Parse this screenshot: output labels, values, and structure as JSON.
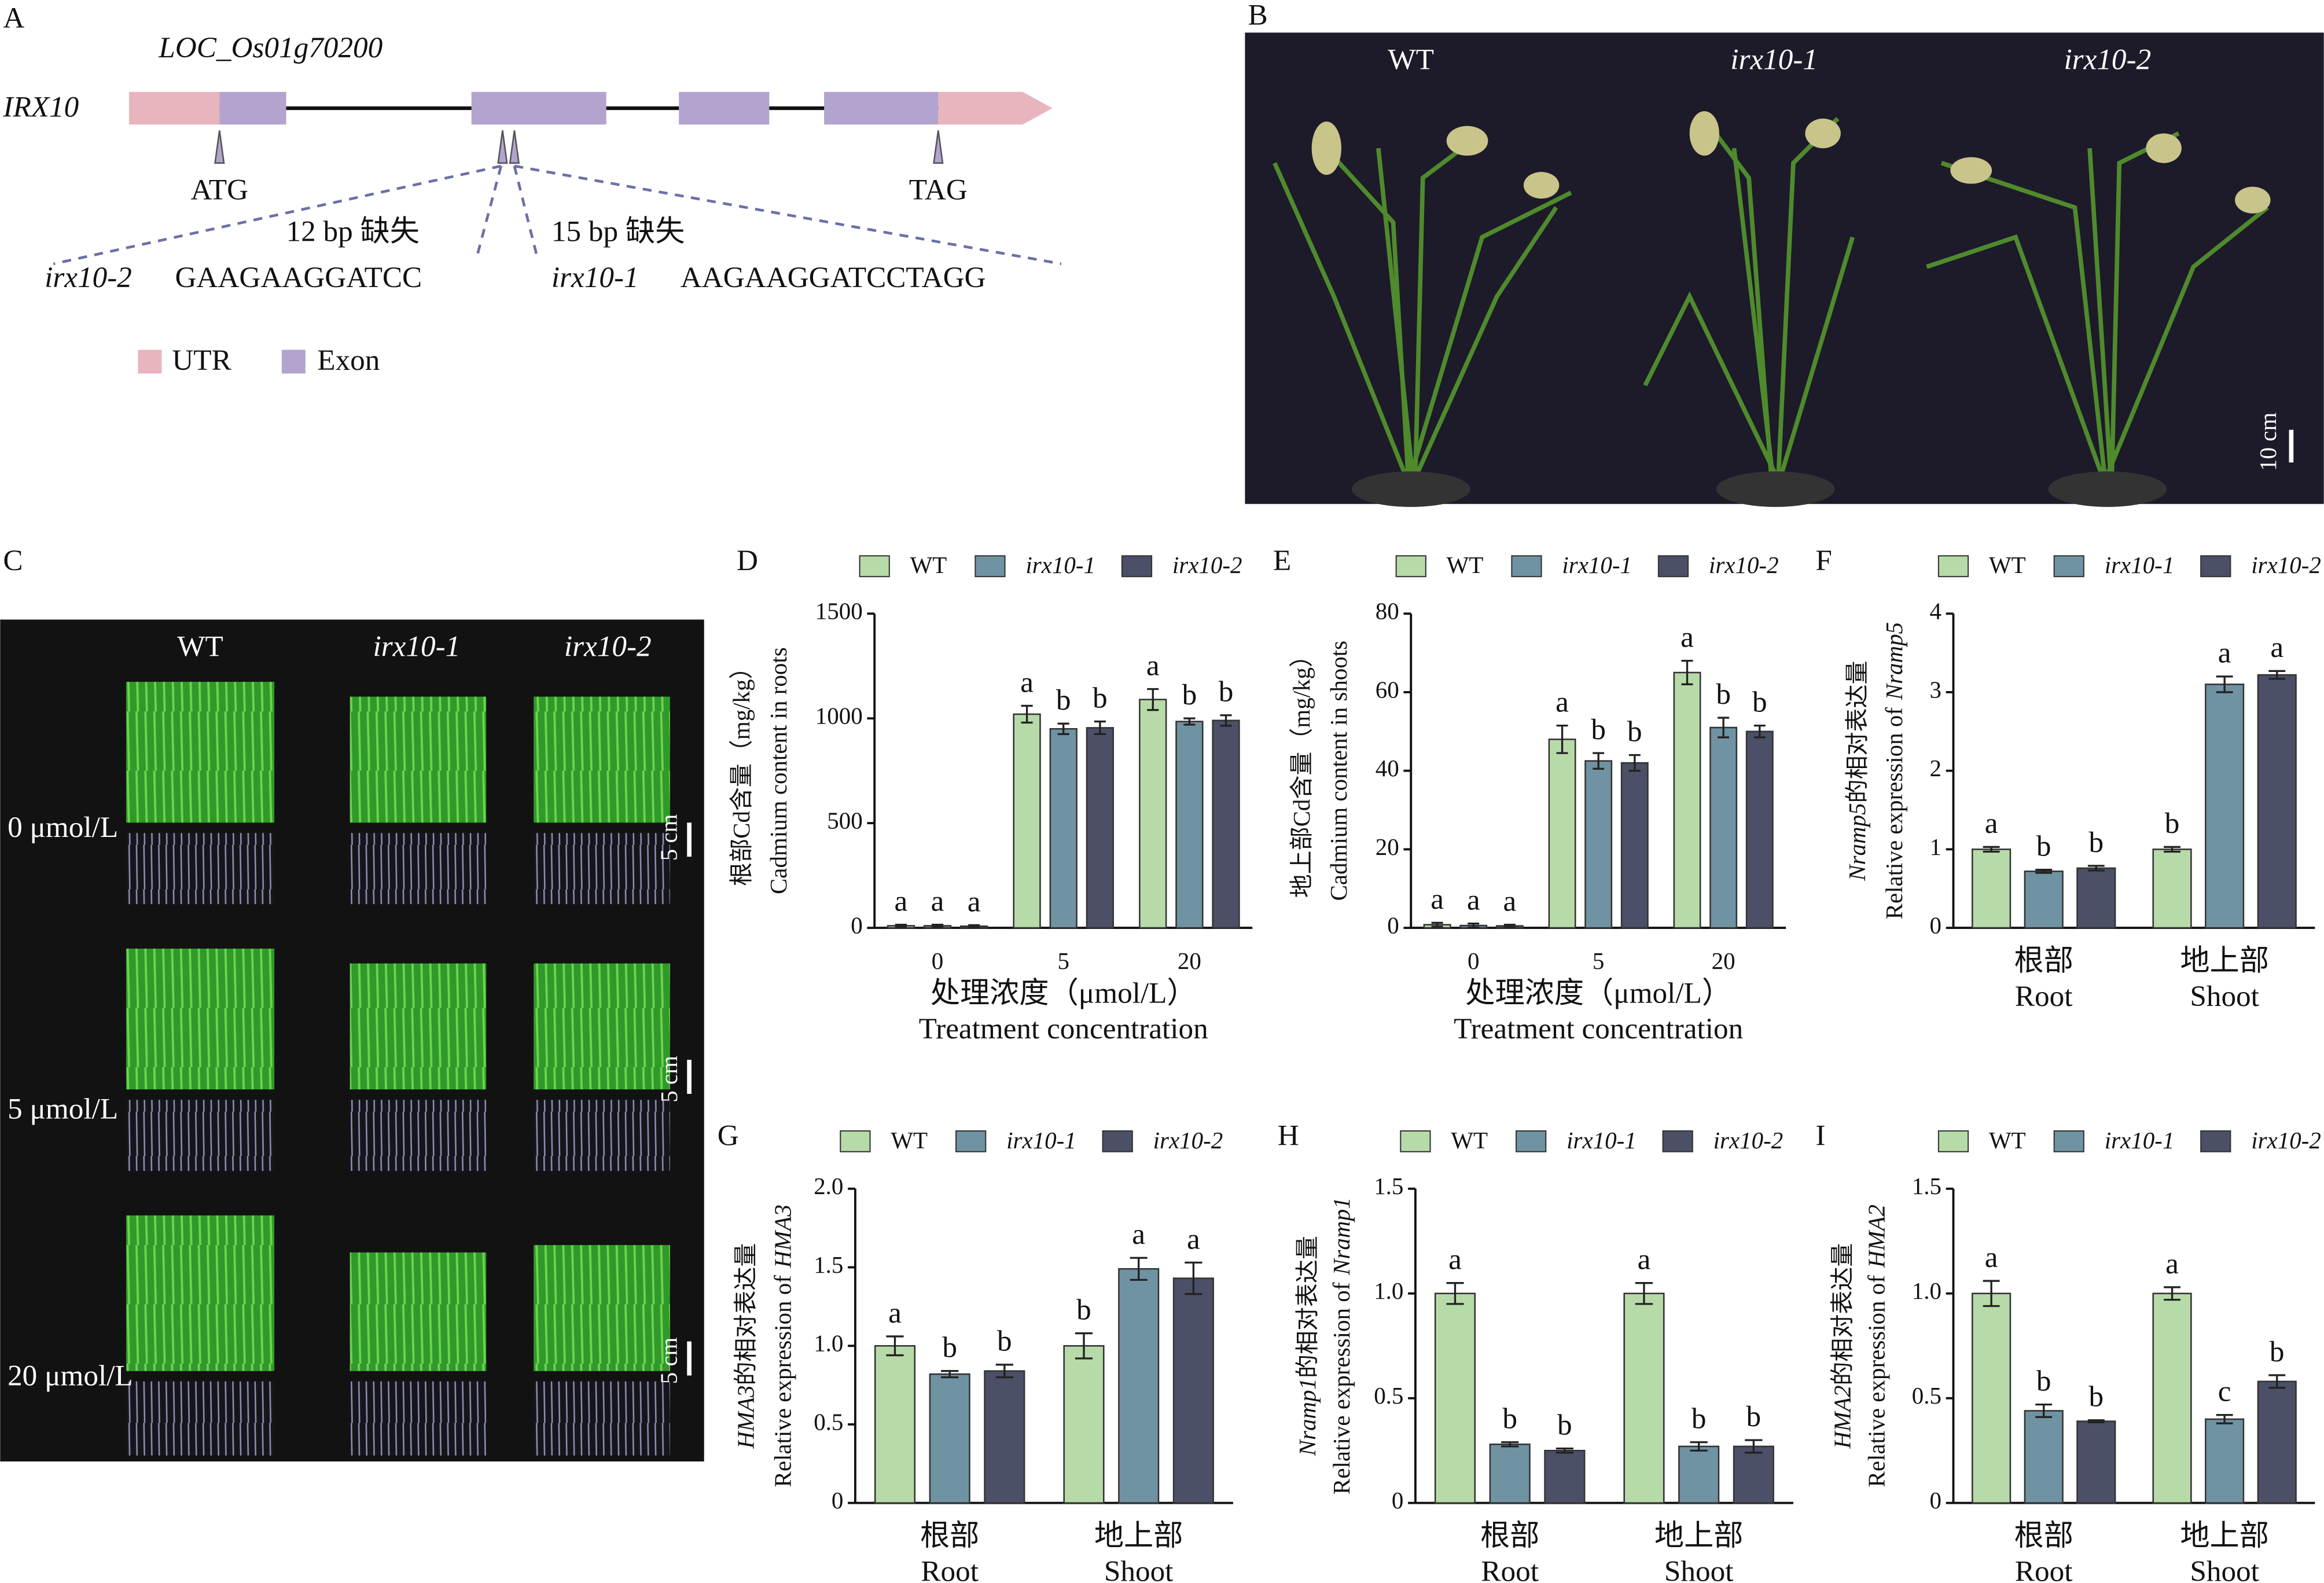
{
  "panel_a": {
    "label": "A",
    "locus": "LOC_Os01g70200",
    "gene": "IRX10",
    "start_codon": "ATG",
    "stop_codon": "TAG",
    "deletions": [
      {
        "size": "12 bp 缺失",
        "allele": "irx10-2",
        "sequence": "GAAGAAGGATCC"
      },
      {
        "size": "15 bp 缺失",
        "allele": "irx10-1",
        "sequence": "AAGAAGGATCCTAGG"
      }
    ],
    "legend": [
      "UTR",
      "Exon"
    ]
  },
  "panel_b": {
    "label": "B",
    "genotypes": [
      "WT",
      "irx10-1",
      "irx10-2"
    ],
    "scale_bar": "10 cm"
  },
  "panel_c": {
    "label": "C",
    "genotypes": [
      "WT",
      "irx10-1",
      "irx10-2"
    ],
    "treatments": [
      "0 μmol/L",
      "5 μmol/L",
      "20 μmol/L"
    ],
    "scale_bars": [
      "5 cm",
      "5 cm",
      "5 cm"
    ]
  },
  "chart_data": [
    {
      "panel": "D",
      "type": "bar",
      "ylabel": [
        "根部Cd含量（mg/kg）",
        "Cadmium content in roots"
      ],
      "xlabel": [
        "处理浓度（μmol/L）",
        "Treatment concentration"
      ],
      "categories": [
        "0",
        "5",
        "20"
      ],
      "series": [
        {
          "name": "WT",
          "italic": false,
          "color": "#b7dba8",
          "values": [
            10,
            1020,
            1090
          ],
          "errors": [
            5,
            40,
            50
          ],
          "letters": [
            "a",
            "a",
            "a"
          ]
        },
        {
          "name": "irx10-1",
          "italic": true,
          "color": "#7093a3",
          "values": [
            10,
            950,
            985
          ],
          "errors": [
            5,
            25,
            15
          ],
          "letters": [
            "a",
            "b",
            "b"
          ]
        },
        {
          "name": "irx10-2",
          "italic": true,
          "color": "#4b5068",
          "values": [
            8,
            955,
            990
          ],
          "errors": [
            5,
            30,
            25
          ],
          "letters": [
            "a",
            "b",
            "b"
          ]
        }
      ],
      "ylim": [
        0,
        1500
      ],
      "yticks": [
        0,
        500,
        1000,
        1500
      ]
    },
    {
      "panel": "E",
      "type": "bar",
      "ylabel": [
        "地上部Cd含量（mg/kg）",
        "Cadmium content in shoots"
      ],
      "xlabel": [
        "处理浓度（μmol/L）",
        "Treatment concentration"
      ],
      "categories": [
        "0",
        "5",
        "20"
      ],
      "series": [
        {
          "name": "WT",
          "italic": false,
          "color": "#b7dba8",
          "values": [
            0.8,
            48,
            65
          ],
          "errors": [
            0.5,
            3.5,
            3
          ],
          "letters": [
            "a",
            "a",
            "a"
          ]
        },
        {
          "name": "irx10-1",
          "italic": true,
          "color": "#7093a3",
          "values": [
            0.6,
            42.5,
            51
          ],
          "errors": [
            0.5,
            2,
            2.5
          ],
          "letters": [
            "a",
            "b",
            "b"
          ]
        },
        {
          "name": "irx10-2",
          "italic": true,
          "color": "#4b5068",
          "values": [
            0.5,
            42,
            50
          ],
          "errors": [
            0.3,
            2,
            1.5
          ],
          "letters": [
            "a",
            "b",
            "b"
          ]
        }
      ],
      "ylim": [
        0,
        80
      ],
      "yticks": [
        0,
        20,
        40,
        60,
        80
      ]
    },
    {
      "panel": "F",
      "type": "bar",
      "gene": "Nramp5",
      "ylabel": [
        "的相对表达量",
        "Relative expression of"
      ],
      "categories": [
        "根部",
        "地上部"
      ],
      "categories_en": [
        "Root",
        "Shoot"
      ],
      "series": [
        {
          "name": "WT",
          "italic": false,
          "color": "#b7dba8",
          "values": [
            1.0,
            1.0
          ],
          "errors": [
            0.03,
            0.03
          ],
          "letters": [
            "a",
            "b"
          ]
        },
        {
          "name": "irx10-1",
          "italic": true,
          "color": "#7093a3",
          "values": [
            0.72,
            3.1
          ],
          "errors": [
            0.02,
            0.1
          ],
          "letters": [
            "b",
            "a"
          ]
        },
        {
          "name": "irx10-2",
          "italic": true,
          "color": "#4b5068",
          "values": [
            0.76,
            3.22
          ],
          "errors": [
            0.03,
            0.05
          ],
          "letters": [
            "b",
            "a"
          ]
        }
      ],
      "ylim": [
        0,
        4
      ],
      "yticks": [
        0,
        1,
        2,
        3,
        4
      ]
    },
    {
      "panel": "G",
      "type": "bar",
      "gene": "HMA3",
      "ylabel": [
        "的相对表达量",
        "Relative expression of"
      ],
      "categories": [
        "根部",
        "地上部"
      ],
      "categories_en": [
        "Root",
        "Shoot"
      ],
      "series": [
        {
          "name": "WT",
          "italic": false,
          "color": "#b7dba8",
          "values": [
            1.0,
            1.0
          ],
          "errors": [
            0.06,
            0.08
          ],
          "letters": [
            "a",
            "b"
          ]
        },
        {
          "name": "irx10-1",
          "italic": true,
          "color": "#7093a3",
          "values": [
            0.82,
            1.49
          ],
          "errors": [
            0.02,
            0.07
          ],
          "letters": [
            "b",
            "a"
          ]
        },
        {
          "name": "irx10-2",
          "italic": true,
          "color": "#4b5068",
          "values": [
            0.84,
            1.43
          ],
          "errors": [
            0.04,
            0.1
          ],
          "letters": [
            "b",
            "a"
          ]
        }
      ],
      "ylim": [
        0,
        2
      ],
      "yticks": [
        0,
        0.5,
        {
          "value": 1,
          "label": "1.0"
        },
        1.5,
        {
          "value": 2,
          "label": "2.0"
        }
      ]
    },
    {
      "panel": "H",
      "type": "bar",
      "gene": "Nramp1",
      "ylabel": [
        "的相对表达量",
        "Relative expression of"
      ],
      "categories": [
        "根部",
        "地上部"
      ],
      "categories_en": [
        "Root",
        "Shoot"
      ],
      "series": [
        {
          "name": "WT",
          "italic": false,
          "color": "#b7dba8",
          "values": [
            1.0,
            1.0
          ],
          "errors": [
            0.05,
            0.05
          ],
          "letters": [
            "a",
            "a"
          ]
        },
        {
          "name": "irx10-1",
          "italic": true,
          "color": "#7093a3",
          "values": [
            0.28,
            0.27
          ],
          "errors": [
            0.01,
            0.02
          ],
          "letters": [
            "b",
            "b"
          ]
        },
        {
          "name": "irx10-2",
          "italic": true,
          "color": "#4b5068",
          "values": [
            0.25,
            0.27
          ],
          "errors": [
            0.01,
            0.03
          ],
          "letters": [
            "b",
            "b"
          ]
        }
      ],
      "ylim": [
        0,
        1.5
      ],
      "yticks": [
        0,
        0.5,
        {
          "value": 1,
          "label": "1.0"
        },
        1.5
      ]
    },
    {
      "panel": "I",
      "type": "bar",
      "gene": "HMA2",
      "ylabel": [
        "的相对表达量",
        "Relative expression of"
      ],
      "categories": [
        "根部",
        "地上部"
      ],
      "categories_en": [
        "Root",
        "Shoot"
      ],
      "series": [
        {
          "name": "WT",
          "italic": false,
          "color": "#b7dba8",
          "values": [
            1.0,
            1.0
          ],
          "errors": [
            0.06,
            0.03
          ],
          "letters": [
            "a",
            "a"
          ]
        },
        {
          "name": "irx10-1",
          "italic": true,
          "color": "#7093a3",
          "values": [
            0.44,
            0.4
          ],
          "errors": [
            0.03,
            0.02
          ],
          "letters": [
            "b",
            "c"
          ]
        },
        {
          "name": "irx10-2",
          "italic": true,
          "color": "#4b5068",
          "values": [
            0.39,
            0.58
          ],
          "errors": [
            0.005,
            0.03
          ],
          "letters": [
            "b",
            "b"
          ]
        }
      ],
      "ylim": [
        0,
        1.5
      ],
      "yticks": [
        0,
        0.5,
        {
          "value": 1,
          "label": "1.0"
        },
        1.5
      ]
    }
  ]
}
